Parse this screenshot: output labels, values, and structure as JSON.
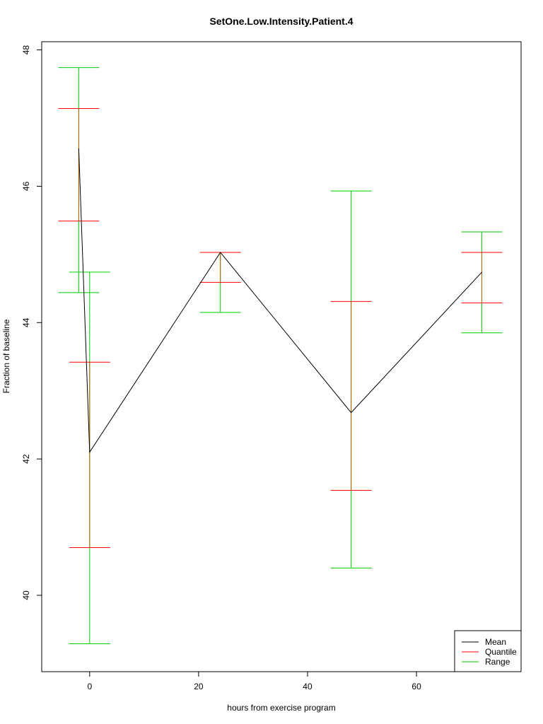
{
  "chart_data": {
    "type": "line",
    "title": "SetOne.Low.Intensity.Patient.4",
    "xlabel": "hours from exercise program",
    "ylabel": "Fraction of baseline",
    "xlim": [
      -8.8,
      79.2
    ],
    "ylim": [
      38.88,
      48.12
    ],
    "x_ticks": [
      0,
      20,
      40,
      60
    ],
    "y_ticks": [
      40,
      42,
      44,
      46,
      48
    ],
    "grid": false,
    "legend_position": "bottom-right",
    "legend": [
      {
        "label": "Mean",
        "color": "#000000"
      },
      {
        "label": "Quantile",
        "color": "#ff0000"
      },
      {
        "label": "Range",
        "color": "#00cc00"
      }
    ],
    "series": [
      {
        "name": "Mean",
        "x": [
          -2,
          0,
          24,
          48,
          72
        ],
        "y": [
          46.55,
          42.1,
          45.03,
          42.68,
          44.74
        ]
      }
    ],
    "error_bars": [
      {
        "x": -2,
        "quantile_low": 45.49,
        "quantile_high": 47.14,
        "range_low": 44.44,
        "range_high": 47.74
      },
      {
        "x": 0,
        "quantile_low": 40.7,
        "quantile_high": 43.42,
        "range_low": 39.29,
        "range_high": 44.74
      },
      {
        "x": 24,
        "quantile_low": 44.59,
        "quantile_high": 45.03,
        "range_low": 44.15,
        "range_high": 45.03
      },
      {
        "x": 48,
        "quantile_low": 41.54,
        "quantile_high": 44.31,
        "range_low": 40.4,
        "range_high": 45.93
      },
      {
        "x": 72,
        "quantile_low": 44.29,
        "quantile_high": 45.03,
        "range_low": 43.85,
        "range_high": 45.33
      }
    ],
    "colors": {
      "mean": "#000000",
      "quantile": "#ff0000",
      "range": "#00cc00",
      "overlap": "#b85c00"
    }
  }
}
